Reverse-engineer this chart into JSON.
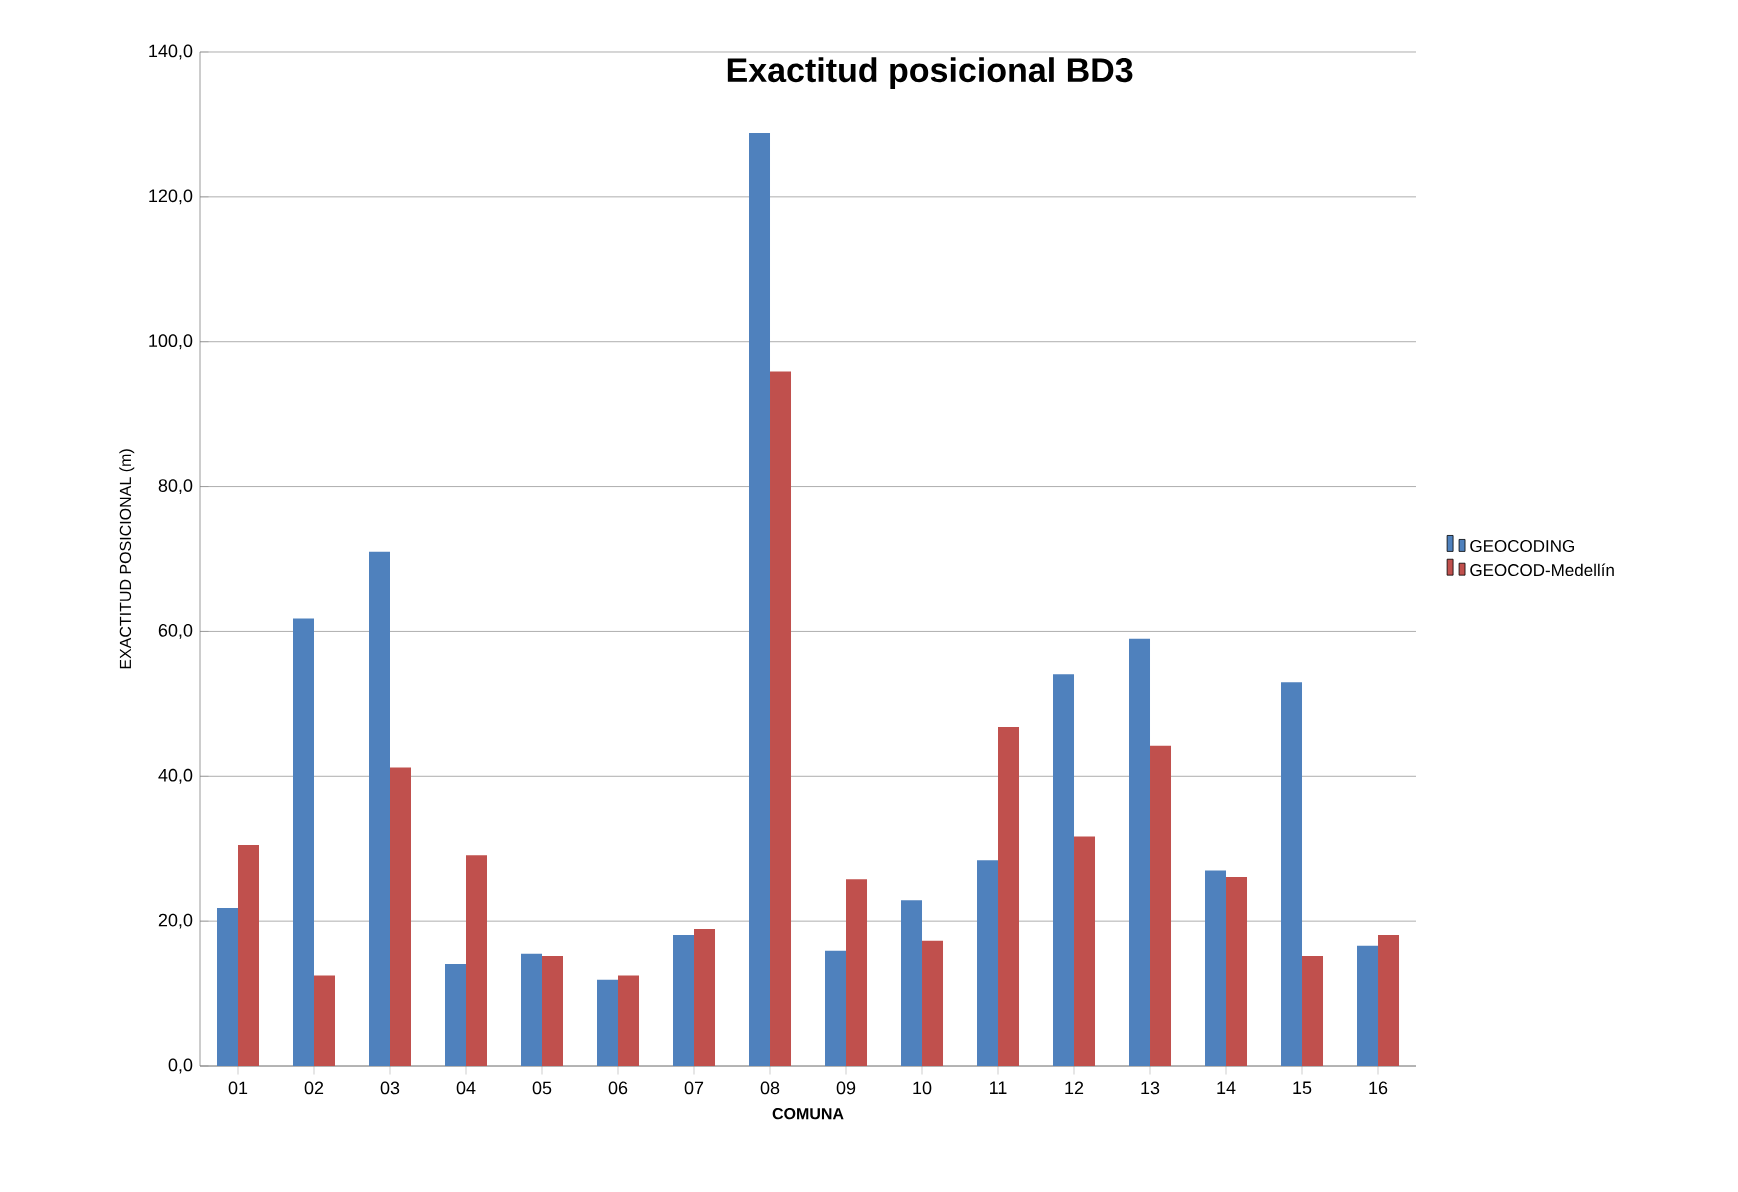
{
  "chart_data": {
    "type": "bar",
    "title": "Exactitud posicional BD3",
    "xlabel": "COMUNA",
    "ylabel": "EXACTITUD POSICIONAL  (m)",
    "categories": [
      "01",
      "02",
      "03",
      "04",
      "05",
      "06",
      "07",
      "08",
      "09",
      "10",
      "11",
      "12",
      "13",
      "14",
      "15",
      "16"
    ],
    "series": [
      {
        "name": "GEOCODING",
        "color": "#4f81bd",
        "values": [
          21.8,
          61.8,
          71.0,
          14.1,
          15.5,
          11.9,
          18.1,
          128.8,
          15.9,
          22.9,
          28.4,
          54.1,
          59.0,
          27.0,
          53.0,
          16.6
        ]
      },
      {
        "name": "GEOCOD-Medellín",
        "color": "#c0504d",
        "values": [
          30.5,
          12.5,
          41.2,
          29.1,
          15.2,
          12.5,
          18.9,
          95.9,
          25.8,
          17.3,
          46.8,
          31.7,
          44.2,
          26.1,
          15.2,
          18.1
        ]
      }
    ],
    "ylim": [
      0,
      140
    ],
    "yticks": [
      {
        "value": 0,
        "label": "0,0"
      },
      {
        "value": 20,
        "label": "20,0"
      },
      {
        "value": 40,
        "label": "40,0"
      },
      {
        "value": 60,
        "label": "60,0"
      },
      {
        "value": 80,
        "label": "80,0"
      },
      {
        "value": 100,
        "label": "100,0"
      },
      {
        "value": 120,
        "label": "120,0"
      },
      {
        "value": 140,
        "label": "140,0"
      }
    ],
    "grid": "y",
    "legend": "right"
  }
}
